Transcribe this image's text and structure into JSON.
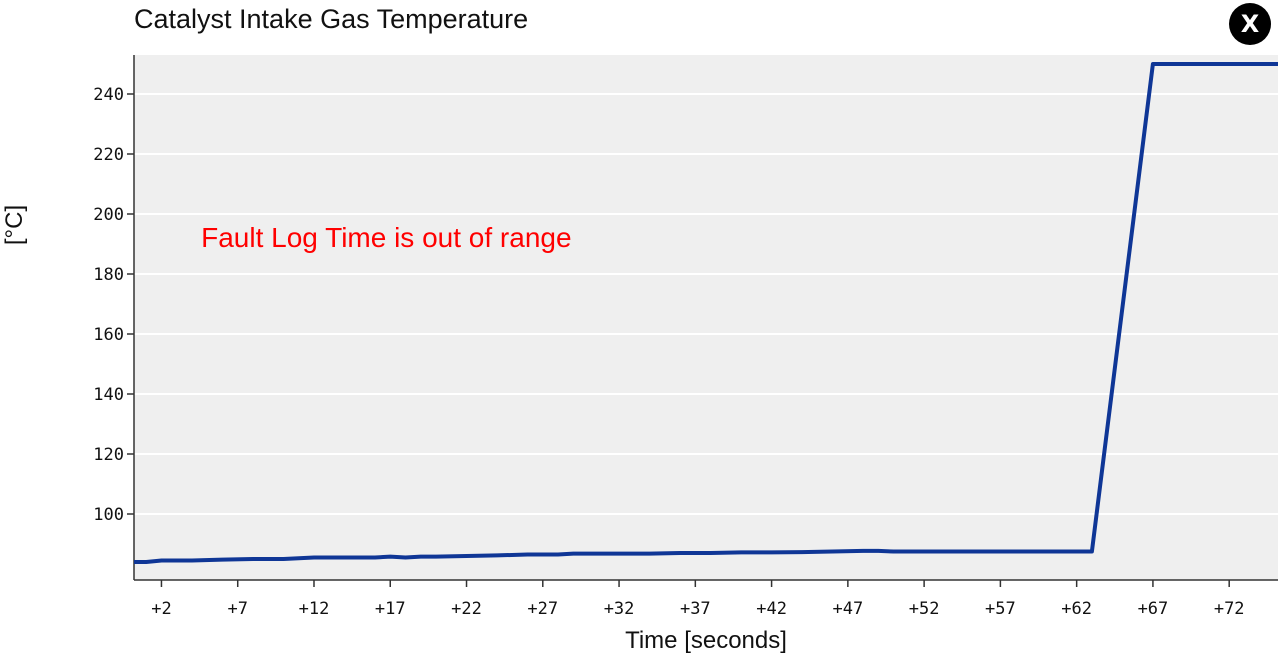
{
  "window": {
    "title": "Catalyst Intake Gas Temperature",
    "close_label": "X",
    "close_icon": "close-icon"
  },
  "chart_data": {
    "type": "line",
    "title": "Catalyst Intake Gas Temperature",
    "xlabel": "Time [seconds]",
    "ylabel": "[°C]",
    "x_ticks": [
      2,
      7,
      12,
      17,
      22,
      27,
      32,
      37,
      42,
      47,
      52,
      57,
      62,
      67,
      72
    ],
    "x_tick_labels": [
      "+2",
      "+7",
      "+12",
      "+17",
      "+22",
      "+27",
      "+32",
      "+37",
      "+42",
      "+47",
      "+52",
      "+57",
      "+62",
      "+67",
      "+72"
    ],
    "y_ticks": [
      100,
      120,
      140,
      160,
      180,
      200,
      220,
      240
    ],
    "y_tick_labels": [
      "100",
      "120",
      "140",
      "160",
      "180",
      "200",
      "220",
      "240"
    ],
    "xlim": [
      0.2,
      75.2
    ],
    "ylim": [
      78,
      253
    ],
    "grid": "horizontal",
    "background": "#efefef",
    "series": [
      {
        "color": "#0f3696",
        "x": [
          0.2,
          1,
          2,
          4,
          6,
          8,
          10,
          12,
          14,
          16,
          17,
          18,
          19,
          20,
          22,
          24,
          26,
          27,
          28,
          29,
          30,
          32,
          34,
          36,
          38,
          40,
          42,
          44,
          46,
          48,
          49,
          50,
          52,
          54,
          56,
          58,
          60,
          62,
          63,
          67,
          75.2
        ],
        "y": [
          84,
          84,
          84.5,
          84.5,
          84.8,
          85,
          85,
          85.5,
          85.5,
          85.5,
          85.8,
          85.5,
          85.8,
          85.8,
          86,
          86.2,
          86.5,
          86.5,
          86.5,
          86.8,
          86.8,
          86.8,
          86.8,
          87,
          87,
          87.2,
          87.2,
          87.3,
          87.5,
          87.7,
          87.7,
          87.5,
          87.5,
          87.5,
          87.5,
          87.5,
          87.5,
          87.5,
          87.5,
          250,
          250
        ]
      }
    ],
    "annotations": [
      {
        "text": "Fault Log Time is out of range",
        "x": 4.6,
        "y": 189,
        "color": "#ff0000"
      }
    ]
  }
}
